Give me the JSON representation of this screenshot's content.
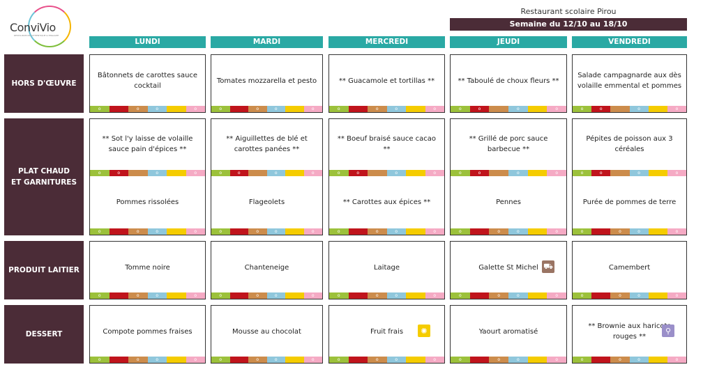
{
  "logo": {
    "brand": "ConviVio",
    "tagline": "RESTAURATION AUTHENTIQUE & ENGAGEE"
  },
  "header": {
    "restaurant": "Restaurant scolaire Pirou",
    "week": "Semaine du 12/10 au 18/10"
  },
  "days": [
    "LUNDI",
    "MARDI",
    "MERCREDI",
    "JEUDI",
    "VENDREDI"
  ],
  "categories": {
    "hors_doeuvre": "HORS D'ŒUVRE",
    "plat_line1": "PLAT CHAUD",
    "plat_line2": "ET GARNITURES",
    "laitier": "PRODUIT LAITIER",
    "dessert": "DESSERT"
  },
  "marker": "o",
  "menu": {
    "hors_doeuvre": [
      "Bâtonnets de carottes sauce cocktail",
      "Tomates mozzarella et pesto",
      "** Guacamole et tortillas **",
      "** Taboulé de choux fleurs **",
      "Salade campagnarde aux dès volaille emmental et pommes"
    ],
    "plat": [
      "** Sot l'y laisse de volaille sauce pain d'épices **",
      "** Aiguillettes de blé et carottes panées **",
      "** Boeuf braisé sauce cacao **",
      "** Grillé de porc sauce barbecue **",
      "Pépites de poisson aux 3 céréales"
    ],
    "garniture": [
      "Pommes rissolées",
      "Flageolets",
      "** Carottes aux épices **",
      "Pennes",
      "Purée de pommes de terre"
    ],
    "laitier": [
      "Tomme noire",
      "Chanteneige",
      "Laitage",
      "Galette St Michel",
      "Camembert"
    ],
    "dessert": [
      "Compote pommes fraises",
      "Mousse au chocolat",
      "Fruit frais",
      "Yaourt aromatisé",
      "** Brownie aux haricots rouges **"
    ]
  },
  "badges": {
    "laitier_jeudi": "local-producer-icon",
    "dessert_mercredi": "sun-seasonal-icon",
    "dessert_vendredi": "chef-whisk-icon"
  },
  "colors": {
    "teal": "#2aa9a4",
    "plum": "#4b2c37",
    "bar": [
      "#9cc13b",
      "#c0141c",
      "#cc8c4c",
      "#8fc7dc",
      "#f5cc00",
      "#f5aac4"
    ]
  }
}
